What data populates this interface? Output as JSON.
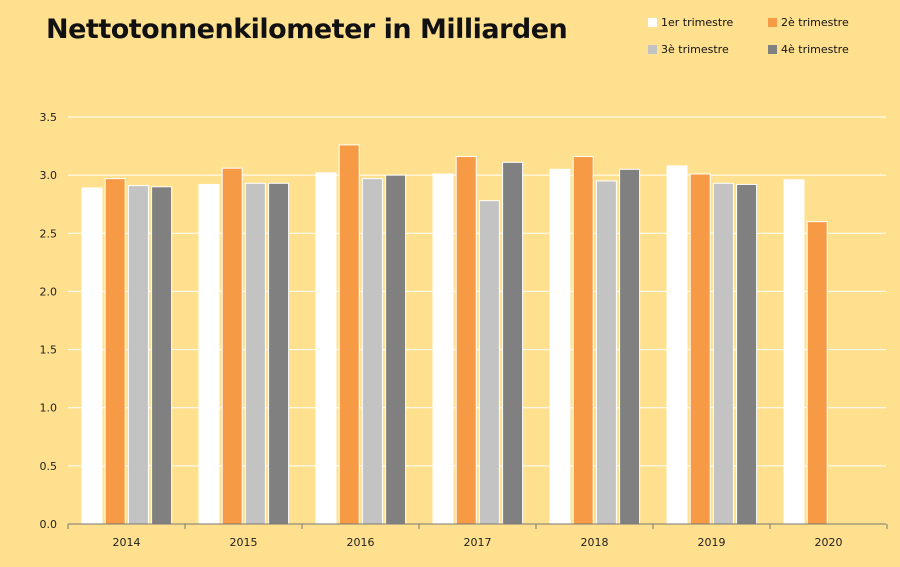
{
  "chart_data": {
    "type": "bar",
    "title": "Nettotonnenkilometer in Milliarden",
    "categories": [
      "2014",
      "2015",
      "2016",
      "2017",
      "2018",
      "2019",
      "2020"
    ],
    "series": [
      {
        "name": "1er trimestre",
        "color": "#ffffff",
        "values": [
          2.89,
          2.92,
          3.02,
          3.01,
          3.05,
          3.08,
          2.96
        ]
      },
      {
        "name": "2è trimestre",
        "color": "#f79a45",
        "values": [
          2.97,
          3.06,
          3.26,
          3.16,
          3.16,
          3.01,
          2.6
        ]
      },
      {
        "name": "3è trimestre",
        "color": "#c3c3c3",
        "values": [
          2.91,
          2.93,
          2.97,
          2.78,
          2.95,
          2.93,
          null
        ]
      },
      {
        "name": "4è trimestre",
        "color": "#808080",
        "values": [
          2.9,
          2.93,
          3.0,
          3.11,
          3.05,
          2.92,
          null
        ]
      }
    ],
    "xlabel": "",
    "ylabel": "",
    "ylim": [
      0,
      3.5
    ],
    "yticks": [
      "0.0",
      "0.5",
      "1.0",
      "1.5",
      "2.0",
      "2.5",
      "3.0",
      "3.5"
    ],
    "grid": true,
    "legend_position": "top-right"
  },
  "colors": {
    "background": "#ffe08e",
    "grid": "#ffffff",
    "axis": "#777777"
  }
}
